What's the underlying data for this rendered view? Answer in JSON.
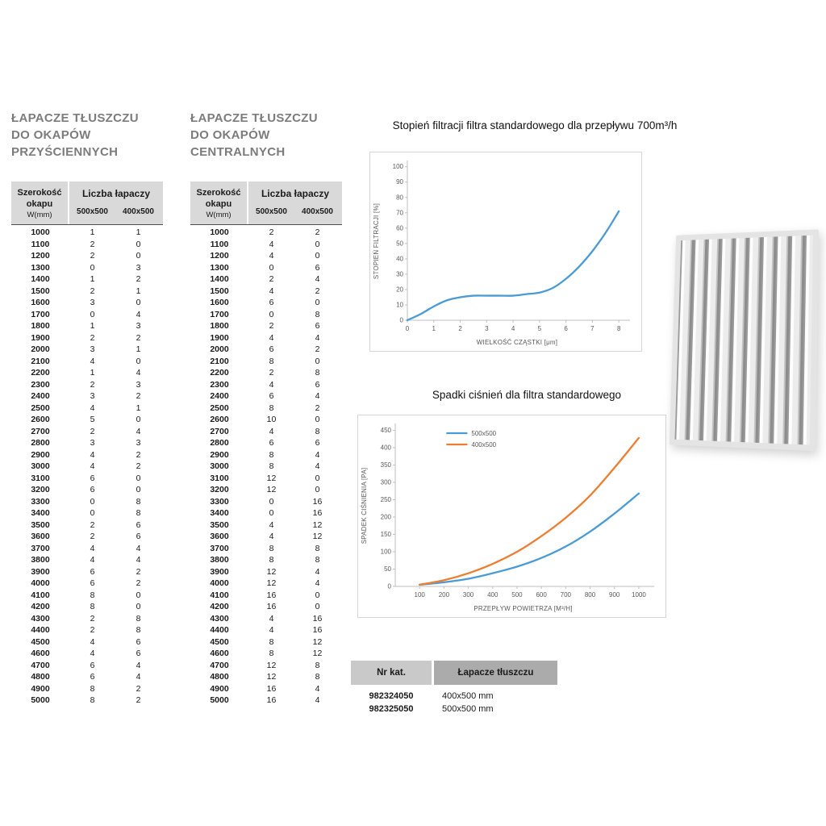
{
  "tables": {
    "wall": {
      "title_lines": [
        "ŁAPACZE TŁUSZCZU",
        "DO OKAPÓW",
        "PRZYŚCIENNYCH"
      ],
      "header": {
        "col1_lines": [
          "Szerokość",
          "okapu",
          "W(mm)"
        ],
        "col2": "Liczba łapaczy",
        "subcols": [
          "500x500",
          "400x500"
        ]
      },
      "rows": [
        [
          1000,
          1,
          1
        ],
        [
          1100,
          2,
          0
        ],
        [
          1200,
          2,
          0
        ],
        [
          1300,
          0,
          3
        ],
        [
          1400,
          1,
          2
        ],
        [
          1500,
          2,
          1
        ],
        [
          1600,
          3,
          0
        ],
        [
          1700,
          0,
          4
        ],
        [
          1800,
          1,
          3
        ],
        [
          1900,
          2,
          2
        ],
        [
          2000,
          3,
          1
        ],
        [
          2100,
          4,
          0
        ],
        [
          2200,
          1,
          4
        ],
        [
          2300,
          2,
          3
        ],
        [
          2400,
          3,
          2
        ],
        [
          2500,
          4,
          1
        ],
        [
          2600,
          5,
          0
        ],
        [
          2700,
          2,
          4
        ],
        [
          2800,
          3,
          3
        ],
        [
          2900,
          4,
          2
        ],
        [
          3000,
          4,
          2
        ],
        [
          3100,
          6,
          0
        ],
        [
          3200,
          6,
          0
        ],
        [
          3300,
          0,
          8
        ],
        [
          3400,
          0,
          8
        ],
        [
          3500,
          2,
          6
        ],
        [
          3600,
          2,
          6
        ],
        [
          3700,
          4,
          4
        ],
        [
          3800,
          4,
          4
        ],
        [
          3900,
          6,
          2
        ],
        [
          4000,
          6,
          2
        ],
        [
          4100,
          8,
          0
        ],
        [
          4200,
          8,
          0
        ],
        [
          4300,
          2,
          8
        ],
        [
          4400,
          2,
          8
        ],
        [
          4500,
          4,
          6
        ],
        [
          4600,
          4,
          6
        ],
        [
          4700,
          6,
          4
        ],
        [
          4800,
          6,
          4
        ],
        [
          4900,
          8,
          2
        ],
        [
          5000,
          8,
          2
        ]
      ]
    },
    "central": {
      "title_lines": [
        "ŁAPACZE TŁUSZCZU",
        "DO OKAPÓW",
        "CENTRALNYCH"
      ],
      "header": {
        "col1_lines": [
          "Szerokość",
          "okapu",
          "W(mm)"
        ],
        "col2": "Liczba łapaczy",
        "subcols": [
          "500x500",
          "400x500"
        ]
      },
      "rows": [
        [
          1000,
          2,
          2
        ],
        [
          1100,
          4,
          0
        ],
        [
          1200,
          4,
          0
        ],
        [
          1300,
          0,
          6
        ],
        [
          1400,
          2,
          4
        ],
        [
          1500,
          4,
          2
        ],
        [
          1600,
          6,
          0
        ],
        [
          1700,
          0,
          8
        ],
        [
          1800,
          2,
          6
        ],
        [
          1900,
          4,
          4
        ],
        [
          2000,
          6,
          2
        ],
        [
          2100,
          8,
          0
        ],
        [
          2200,
          2,
          8
        ],
        [
          2300,
          4,
          6
        ],
        [
          2400,
          6,
          4
        ],
        [
          2500,
          8,
          2
        ],
        [
          2600,
          10,
          0
        ],
        [
          2700,
          4,
          8
        ],
        [
          2800,
          6,
          6
        ],
        [
          2900,
          8,
          4
        ],
        [
          3000,
          8,
          4
        ],
        [
          3100,
          12,
          0
        ],
        [
          3200,
          12,
          0
        ],
        [
          3300,
          0,
          16
        ],
        [
          3400,
          0,
          16
        ],
        [
          3500,
          4,
          12
        ],
        [
          3600,
          4,
          12
        ],
        [
          3700,
          8,
          8
        ],
        [
          3800,
          8,
          8
        ],
        [
          3900,
          12,
          4
        ],
        [
          4000,
          12,
          4
        ],
        [
          4100,
          16,
          0
        ],
        [
          4200,
          16,
          0
        ],
        [
          4300,
          4,
          16
        ],
        [
          4400,
          4,
          16
        ],
        [
          4500,
          8,
          12
        ],
        [
          4600,
          8,
          12
        ],
        [
          4700,
          12,
          8
        ],
        [
          4800,
          12,
          8
        ],
        [
          4900,
          16,
          4
        ],
        [
          5000,
          16,
          4
        ]
      ]
    }
  },
  "chart_data": [
    {
      "type": "line",
      "title": "Stopień filtracji filtra standardowego dla przepływu 700m³/h",
      "xlabel": "WIELKOŚĆ CZĄSTKI [μm]",
      "ylabel": "STOPIEŃ FILTRACJI [%]",
      "xlim": [
        0,
        8.3
      ],
      "ylim": [
        0,
        103
      ],
      "xticks": [
        0,
        1,
        2,
        3,
        4,
        5,
        6,
        7,
        8
      ],
      "yticks": [
        0,
        10,
        20,
        30,
        40,
        50,
        60,
        70,
        80,
        90,
        100
      ],
      "grid": false,
      "legend": false,
      "series": [
        {
          "name": "stopień filtracji",
          "color": "#4a9bd5",
          "x": [
            0,
            0.5,
            1,
            1.5,
            2,
            2.5,
            3,
            3.5,
            4,
            4.5,
            5,
            5.5,
            6,
            6.5,
            7,
            7.5,
            8
          ],
          "y": [
            0,
            4,
            9,
            13,
            15,
            16,
            16,
            16,
            16,
            17,
            18,
            21,
            27,
            35,
            45,
            57,
            71
          ]
        }
      ]
    },
    {
      "type": "line",
      "title": "Spadki ciśnień dla filtra standardowego",
      "xlabel": "PRZEPŁYW POWIETRZA [M³/H]",
      "ylabel": "SPADEK CIŚNIENIA [PA]",
      "xlim": [
        0,
        1050
      ],
      "ylim": [
        0,
        465
      ],
      "xticks": [
        100,
        200,
        300,
        400,
        500,
        600,
        700,
        800,
        900,
        1000
      ],
      "yticks": [
        0,
        50,
        100,
        150,
        200,
        250,
        300,
        350,
        400,
        450
      ],
      "grid": false,
      "legend": true,
      "legend_position": "top-center",
      "series": [
        {
          "name": "500x500",
          "color": "#4a9bd5",
          "x": [
            100,
            200,
            300,
            400,
            500,
            600,
            700,
            800,
            900,
            1000
          ],
          "y": [
            5,
            12,
            22,
            38,
            57,
            82,
            115,
            158,
            210,
            268
          ]
        },
        {
          "name": "400x500",
          "color": "#ed7d31",
          "x": [
            100,
            200,
            300,
            400,
            500,
            600,
            700,
            800,
            900,
            1000
          ],
          "y": [
            5,
            18,
            38,
            65,
            100,
            145,
            198,
            262,
            342,
            428
          ]
        }
      ]
    }
  ],
  "catalog": {
    "headers": [
      "Nr kat.",
      "Łapacze tłuszczu"
    ],
    "rows": [
      [
        "982324050",
        "400x500 mm"
      ],
      [
        "982325050",
        "500x500 mm"
      ]
    ]
  },
  "colors": {
    "accent_blue": "#4a9bd5",
    "accent_orange": "#ed7d31",
    "table_header_bg": "#d9d9d9",
    "catalog_header1_bg": "#c9c9c9",
    "catalog_header2_bg": "#ababab",
    "title_gray": "#7c7c7c"
  }
}
